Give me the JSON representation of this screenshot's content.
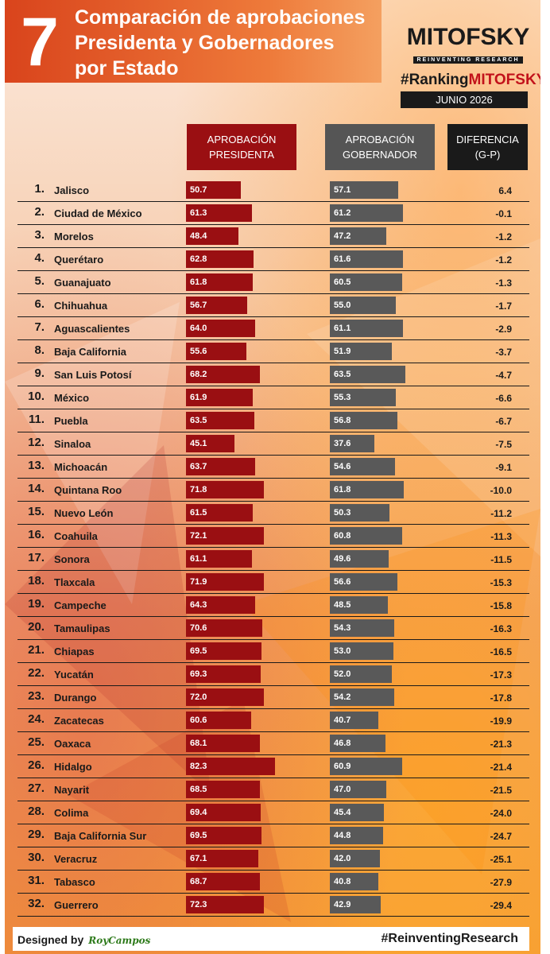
{
  "header": {
    "number": "7",
    "title_lines": [
      "Comparación de aprobaciones",
      "Presidenta y Gobernadores",
      "por Estado"
    ]
  },
  "brand": {
    "logo": "MITOFSKY",
    "tagline": "REINVENTING RESEARCH",
    "ranking_prefix": "#Ranking",
    "ranking_brand": "MITOFSKY",
    "month": "JUNIO 2026"
  },
  "columns": {
    "presidenta": [
      "APROBACIÓN",
      "PRESIDENTA"
    ],
    "gobernador": [
      "APROBACIÓN",
      "GOBERNADOR"
    ],
    "diferencia": [
      "DIFERENCIA",
      "(G-P)"
    ]
  },
  "colors": {
    "presidenta": "#9a0f12",
    "gobernador": "#595959",
    "header": "#d9441c"
  },
  "chart_data": {
    "type": "bar",
    "series": [
      {
        "name": "APROBACIÓN PRESIDENTA"
      },
      {
        "name": "APROBACIÓN GOBERNADOR"
      },
      {
        "name": "DIFERENCIA (G-P)"
      }
    ],
    "rows": [
      {
        "rank": "1.",
        "state": "Jalisco",
        "pres": "50.7",
        "gob": "57.1",
        "diff": "6.4"
      },
      {
        "rank": "2.",
        "state": "Ciudad de México",
        "pres": "61.3",
        "gob": "61.2",
        "diff": "-0.1"
      },
      {
        "rank": "3.",
        "state": "Morelos",
        "pres": "48.4",
        "gob": "47.2",
        "diff": "-1.2"
      },
      {
        "rank": "4.",
        "state": "Querétaro",
        "pres": "62.8",
        "gob": "61.6",
        "diff": "-1.2"
      },
      {
        "rank": "5.",
        "state": "Guanajuato",
        "pres": "61.8",
        "gob": "60.5",
        "diff": "-1.3"
      },
      {
        "rank": "6.",
        "state": "Chihuahua",
        "pres": "56.7",
        "gob": "55.0",
        "diff": "-1.7"
      },
      {
        "rank": "7.",
        "state": "Aguascalientes",
        "pres": "64.0",
        "gob": "61.1",
        "diff": "-2.9"
      },
      {
        "rank": "8.",
        "state": "Baja California",
        "pres": "55.6",
        "gob": "51.9",
        "diff": "-3.7"
      },
      {
        "rank": "9.",
        "state": "San Luis Potosí",
        "pres": "68.2",
        "gob": "63.5",
        "diff": "-4.7"
      },
      {
        "rank": "10.",
        "state": "México",
        "pres": "61.9",
        "gob": "55.3",
        "diff": "-6.6"
      },
      {
        "rank": "11.",
        "state": "Puebla",
        "pres": "63.5",
        "gob": "56.8",
        "diff": "-6.7"
      },
      {
        "rank": "12.",
        "state": "Sinaloa",
        "pres": "45.1",
        "gob": "37.6",
        "diff": "-7.5"
      },
      {
        "rank": "13.",
        "state": "Michoacán",
        "pres": "63.7",
        "gob": "54.6",
        "diff": "-9.1"
      },
      {
        "rank": "14.",
        "state": "Quintana Roo",
        "pres": "71.8",
        "gob": "61.8",
        "diff": "-10.0"
      },
      {
        "rank": "15.",
        "state": "Nuevo León",
        "pres": "61.5",
        "gob": "50.3",
        "diff": "-11.2"
      },
      {
        "rank": "16.",
        "state": "Coahuila",
        "pres": "72.1",
        "gob": "60.8",
        "diff": "-11.3"
      },
      {
        "rank": "17.",
        "state": "Sonora",
        "pres": "61.1",
        "gob": "49.6",
        "diff": "-11.5"
      },
      {
        "rank": "18.",
        "state": "Tlaxcala",
        "pres": "71.9",
        "gob": "56.6",
        "diff": "-15.3"
      },
      {
        "rank": "19.",
        "state": "Campeche",
        "pres": "64.3",
        "gob": "48.5",
        "diff": "-15.8"
      },
      {
        "rank": "20.",
        "state": "Tamaulipas",
        "pres": "70.6",
        "gob": "54.3",
        "diff": "-16.3"
      },
      {
        "rank": "21.",
        "state": "Chiapas",
        "pres": "69.5",
        "gob": "53.0",
        "diff": "-16.5"
      },
      {
        "rank": "22.",
        "state": "Yucatán",
        "pres": "69.3",
        "gob": "52.0",
        "diff": "-17.3"
      },
      {
        "rank": "23.",
        "state": "Durango",
        "pres": "72.0",
        "gob": "54.2",
        "diff": "-17.8"
      },
      {
        "rank": "24.",
        "state": "Zacatecas",
        "pres": "60.6",
        "gob": "40.7",
        "diff": "-19.9"
      },
      {
        "rank": "25.",
        "state": "Oaxaca",
        "pres": "68.1",
        "gob": "46.8",
        "diff": "-21.3"
      },
      {
        "rank": "26.",
        "state": "Hidalgo",
        "pres": "82.3",
        "gob": "60.9",
        "diff": "-21.4"
      },
      {
        "rank": "27.",
        "state": "Nayarit",
        "pres": "68.5",
        "gob": "47.0",
        "diff": "-21.5"
      },
      {
        "rank": "28.",
        "state": "Colima",
        "pres": "69.4",
        "gob": "45.4",
        "diff": "-24.0"
      },
      {
        "rank": "29.",
        "state": "Baja California Sur",
        "pres": "69.5",
        "gob": "44.8",
        "diff": "-24.7"
      },
      {
        "rank": "30.",
        "state": "Veracruz",
        "pres": "67.1",
        "gob": "42.0",
        "diff": "-25.1"
      },
      {
        "rank": "31.",
        "state": "Tabasco",
        "pres": "68.7",
        "gob": "40.8",
        "diff": "-27.9"
      },
      {
        "rank": "32.",
        "state": "Guerrero",
        "pres": "72.3",
        "gob": "42.9",
        "diff": "-29.4"
      }
    ]
  },
  "footer": {
    "designed_by": "Designed by",
    "designer": "RoyCampos",
    "hashtag": "#ReinventingResearch"
  }
}
